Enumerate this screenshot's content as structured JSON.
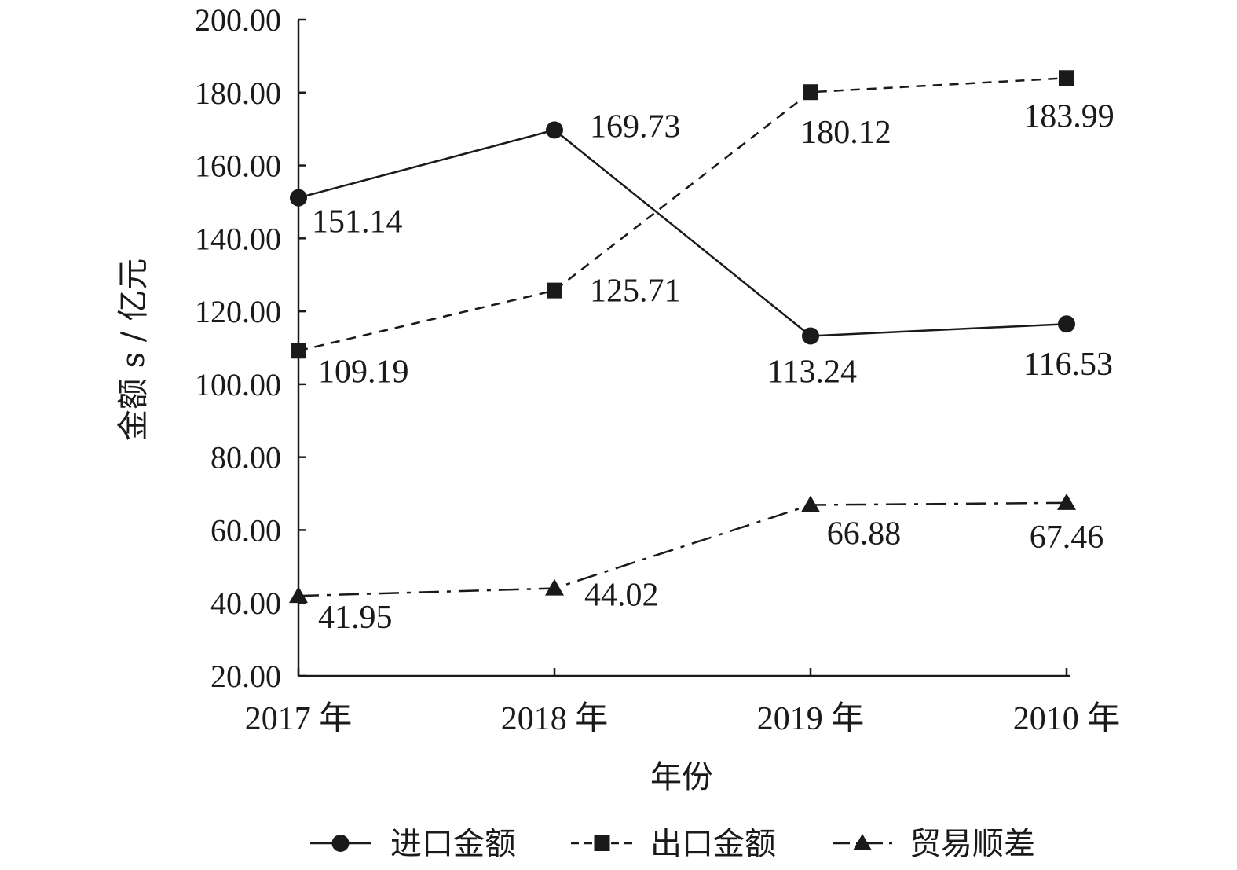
{
  "chart_data": {
    "type": "line",
    "categories": [
      "2017 年",
      "2018 年",
      "2019 年",
      "2010 年"
    ],
    "ylim": [
      20,
      200
    ],
    "yticks": [
      "20.00",
      "40.00",
      "60.00",
      "80.00",
      "100.00",
      "120.00",
      "140.00",
      "160.00",
      "180.00",
      "200.00"
    ],
    "ytick_values": [
      20,
      40,
      60,
      80,
      100,
      120,
      140,
      160,
      180,
      200
    ],
    "xlabel": "年份",
    "ylabel": "金额 s / 亿元",
    "grid": false,
    "legend_position": "bottom",
    "series": [
      {
        "name": "进口金额",
        "values": [
          151.14,
          169.73,
          113.24,
          116.53
        ],
        "labels": [
          "151.14",
          "169.73",
          "113.24",
          "116.53"
        ],
        "marker": "circle",
        "line_style": "solid",
        "color": "#1a1a1a"
      },
      {
        "name": "出口金额",
        "values": [
          109.19,
          125.71,
          180.12,
          183.99
        ],
        "labels": [
          "109.19",
          "125.71",
          "180.12",
          "183.99"
        ],
        "marker": "square",
        "line_style": "dashed",
        "color": "#1a1a1a"
      },
      {
        "name": "贸易顺差",
        "values": [
          41.95,
          44.02,
          66.88,
          67.46
        ],
        "labels": [
          "41.95",
          "44.02",
          "66.88",
          "67.46"
        ],
        "marker": "triangle",
        "line_style": "dash-dot",
        "color": "#1a1a1a"
      }
    ]
  }
}
